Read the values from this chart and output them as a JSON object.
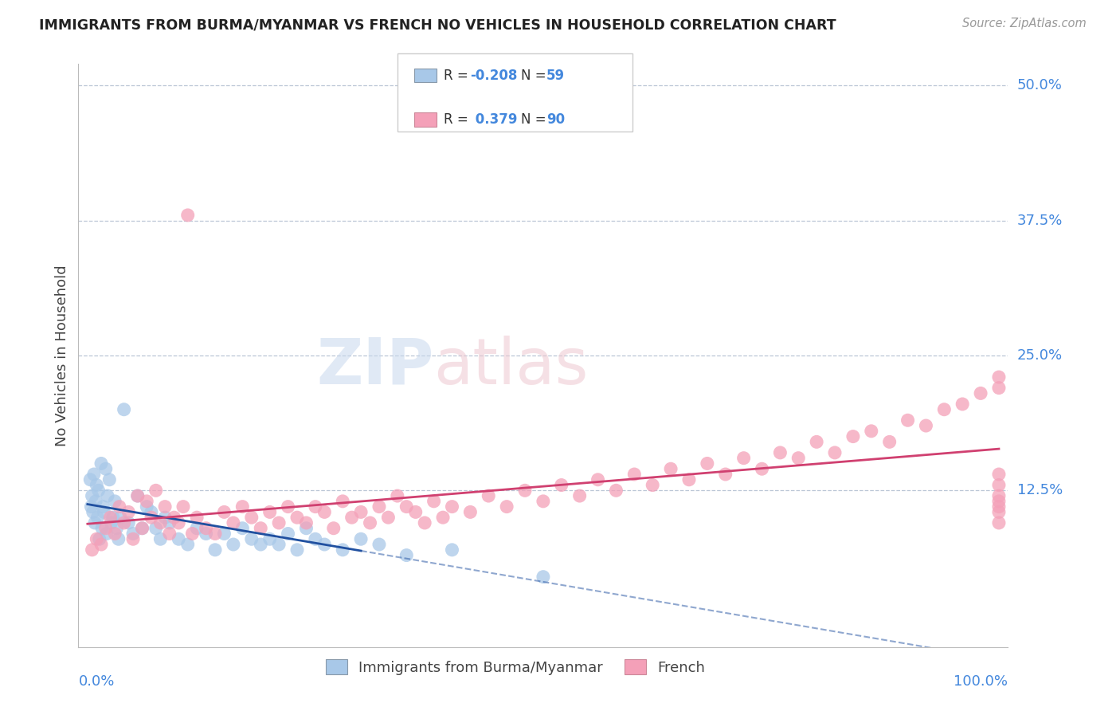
{
  "title": "IMMIGRANTS FROM BURMA/MYANMAR VS FRENCH NO VEHICLES IN HOUSEHOLD CORRELATION CHART",
  "source": "Source: ZipAtlas.com",
  "ylabel": "No Vehicles in Household",
  "legend_blue_r": "-0.208",
  "legend_blue_n": "59",
  "legend_pink_r": "0.379",
  "legend_pink_n": "90",
  "blue_color": "#a8c8e8",
  "pink_color": "#f4a0b8",
  "blue_line_color": "#2050a0",
  "pink_line_color": "#d04070",
  "blue_label": "Immigrants from Burma/Myanmar",
  "pink_label": "French",
  "xmin": 0,
  "xmax": 100,
  "ymin": 0,
  "ymax": 50,
  "ytick_vals": [
    12.5,
    25.0,
    37.5,
    50.0
  ],
  "ytick_labels": [
    "12.5%",
    "25.0%",
    "37.5%",
    "50.0%"
  ],
  "blue_scatter_x": [
    0.3,
    0.4,
    0.5,
    0.6,
    0.7,
    0.8,
    0.9,
    1.0,
    1.1,
    1.2,
    1.3,
    1.5,
    1.6,
    1.7,
    1.8,
    2.0,
    2.1,
    2.2,
    2.4,
    2.6,
    2.8,
    3.0,
    3.2,
    3.4,
    3.6,
    4.0,
    4.5,
    5.0,
    5.5,
    6.0,
    6.5,
    7.0,
    7.5,
    8.0,
    8.5,
    9.0,
    10.0,
    11.0,
    12.0,
    13.0,
    14.0,
    15.0,
    16.0,
    17.0,
    18.0,
    19.0,
    20.0,
    21.0,
    22.0,
    23.0,
    24.0,
    25.0,
    26.0,
    28.0,
    30.0,
    32.0,
    35.0,
    40.0,
    50.0
  ],
  "blue_scatter_y": [
    13.5,
    11.0,
    12.0,
    10.5,
    14.0,
    9.5,
    11.5,
    13.0,
    10.0,
    12.5,
    8.0,
    15.0,
    9.0,
    11.0,
    10.5,
    14.5,
    8.5,
    12.0,
    13.5,
    9.5,
    10.0,
    11.5,
    9.0,
    8.0,
    10.0,
    20.0,
    9.5,
    8.5,
    12.0,
    9.0,
    11.0,
    10.5,
    9.0,
    8.0,
    10.0,
    9.5,
    8.0,
    7.5,
    9.0,
    8.5,
    7.0,
    8.5,
    7.5,
    9.0,
    8.0,
    7.5,
    8.0,
    7.5,
    8.5,
    7.0,
    9.0,
    8.0,
    7.5,
    7.0,
    8.0,
    7.5,
    6.5,
    7.0,
    4.5
  ],
  "pink_scatter_x": [
    0.5,
    1.0,
    1.5,
    2.0,
    2.5,
    3.0,
    3.5,
    4.0,
    4.5,
    5.0,
    5.5,
    6.0,
    6.5,
    7.0,
    7.5,
    8.0,
    8.5,
    9.0,
    9.5,
    10.0,
    10.5,
    11.0,
    11.5,
    12.0,
    13.0,
    14.0,
    15.0,
    16.0,
    17.0,
    18.0,
    19.0,
    20.0,
    21.0,
    22.0,
    23.0,
    24.0,
    25.0,
    26.0,
    27.0,
    28.0,
    29.0,
    30.0,
    31.0,
    32.0,
    33.0,
    34.0,
    35.0,
    36.0,
    37.0,
    38.0,
    39.0,
    40.0,
    42.0,
    44.0,
    46.0,
    48.0,
    50.0,
    52.0,
    54.0,
    56.0,
    58.0,
    60.0,
    62.0,
    64.0,
    66.0,
    68.0,
    70.0,
    72.0,
    74.0,
    76.0,
    78.0,
    80.0,
    82.0,
    84.0,
    86.0,
    88.0,
    90.0,
    92.0,
    94.0,
    96.0,
    98.0,
    100.0,
    100.0,
    100.0,
    100.0,
    100.0,
    100.0,
    100.0,
    100.0,
    100.0
  ],
  "pink_scatter_y": [
    7.0,
    8.0,
    7.5,
    9.0,
    10.0,
    8.5,
    11.0,
    9.5,
    10.5,
    8.0,
    12.0,
    9.0,
    11.5,
    10.0,
    12.5,
    9.5,
    11.0,
    8.5,
    10.0,
    9.5,
    11.0,
    38.0,
    8.5,
    10.0,
    9.0,
    8.5,
    10.5,
    9.5,
    11.0,
    10.0,
    9.0,
    10.5,
    9.5,
    11.0,
    10.0,
    9.5,
    11.0,
    10.5,
    9.0,
    11.5,
    10.0,
    10.5,
    9.5,
    11.0,
    10.0,
    12.0,
    11.0,
    10.5,
    9.5,
    11.5,
    10.0,
    11.0,
    10.5,
    12.0,
    11.0,
    12.5,
    11.5,
    13.0,
    12.0,
    13.5,
    12.5,
    14.0,
    13.0,
    14.5,
    13.5,
    15.0,
    14.0,
    15.5,
    14.5,
    16.0,
    15.5,
    17.0,
    16.0,
    17.5,
    18.0,
    17.0,
    19.0,
    18.5,
    20.0,
    20.5,
    21.5,
    23.0,
    22.0,
    10.5,
    11.0,
    11.5,
    12.0,
    13.0,
    14.0,
    9.5
  ]
}
